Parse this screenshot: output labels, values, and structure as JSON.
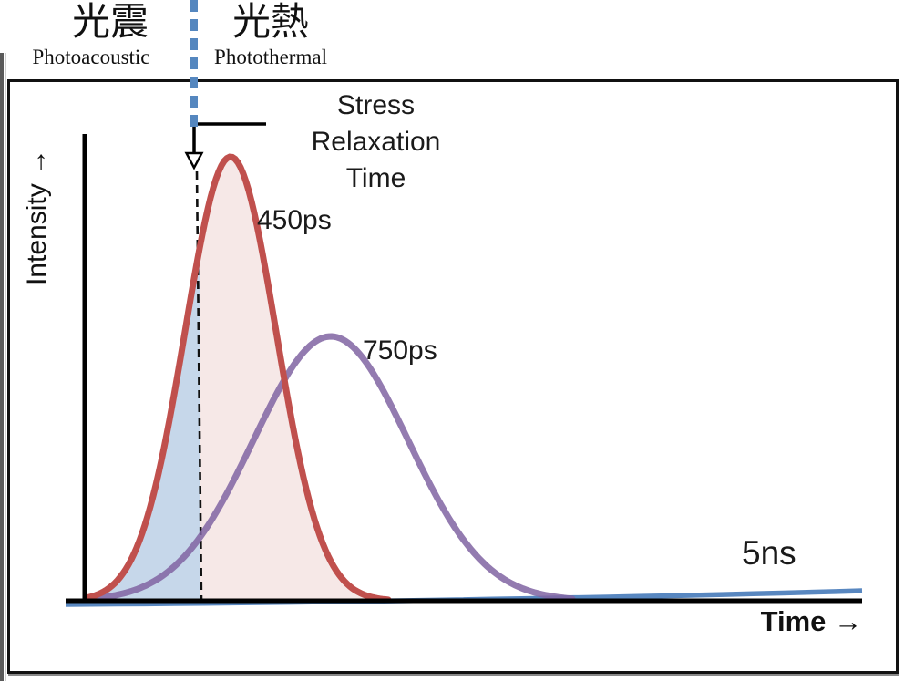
{
  "regimes": {
    "left": {
      "cjk": "光震",
      "en": "Photoacoustic"
    },
    "right": {
      "cjk": "光熱",
      "en": "Photothermal"
    },
    "boundary_color": "#5587BF"
  },
  "chart_data": {
    "type": "line",
    "title": "",
    "xlabel": "Time →",
    "ylabel": "Intensity →",
    "x_axis_ticks": [],
    "y_axis_ticks": [],
    "legend": "none",
    "grid": false,
    "series": [
      {
        "name": "450ps",
        "label": "450ps",
        "shape": "gaussian-pulse",
        "color": "#C0504D",
        "peak_x_frac": 0.19,
        "peak_height_frac": 0.95,
        "sigma_frac": 0.059
      },
      {
        "name": "750ps",
        "label": "750ps",
        "shape": "gaussian-pulse",
        "color": "#8064A2",
        "peak_x_frac": 0.32,
        "peak_height_frac": 0.57,
        "sigma_frac": 0.1
      },
      {
        "name": "5ns",
        "label": "5ns",
        "shape": "near-flat-slowly-rising-baseline",
        "color": "#4F81BD",
        "peak_x_frac": 1.0,
        "peak_height_frac": 0.02
      }
    ],
    "regions": [
      {
        "name": "photoacoustic-area",
        "color": "#C6D7EA",
        "description": "shaded area under 450ps pulse left of the stress-relaxation-time divider"
      },
      {
        "name": "photothermal-area",
        "color": "#F6E8E7",
        "description": "shaded area under 450ps pulse right of the stress-relaxation-time divider"
      }
    ],
    "markers": [
      {
        "name": "stress-relaxation-time-divider",
        "style": "black dashed vertical line with hollow down arrow"
      },
      {
        "name": "regime-boundary",
        "style": "thick blue dashed vertical line above the frame"
      }
    ],
    "annotations": [
      {
        "text": "Stress Relaxation Time"
      },
      {
        "text": "光震 Photoacoustic"
      },
      {
        "text": "光熱 Photothermal"
      }
    ]
  },
  "labels": {
    "stress": "Stress Relaxation Time",
    "p450": "450ps",
    "p750": "750ps",
    "p5ns": "5ns",
    "time": "Time →",
    "intensity": "Intensity →"
  }
}
